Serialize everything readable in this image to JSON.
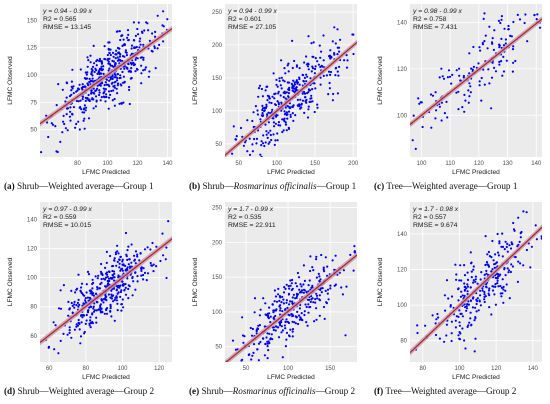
{
  "colors": {
    "panel_background": "#ebebeb",
    "grid": "#ffffff",
    "points": "#0000ee",
    "fit_line": "#b22222",
    "confidence_band": "#c4a0b4",
    "text": "#1a1a1a"
  },
  "chart_data": [
    {
      "id": "a",
      "type": "scatter",
      "point_count_approx": 500,
      "xlabel": "LFMC Predicted",
      "ylabel": "LFMC Observed",
      "xlim": [
        55,
        143
      ],
      "ylim": [
        25,
        165
      ],
      "xticks": [
        80,
        100,
        120,
        140
      ],
      "yticks": [
        50,
        75,
        100,
        125,
        150
      ],
      "equation": "y = 0.94 - 0.99 x",
      "r2": "R2 = 0.565",
      "rmse": "RMSE = 13.145",
      "fit": {
        "slope": 0.99,
        "intercept": 0.94
      },
      "noise_sd": 13.1,
      "x_center": 100,
      "x_sd": 17,
      "caption": {
        "letter": "(a)",
        "parts": [
          {
            "text": "Shrub—Weighted average—Group 1",
            "italic": false
          }
        ]
      }
    },
    {
      "id": "b",
      "type": "scatter",
      "point_count_approx": 400,
      "xlabel": "LFMC Predicted",
      "ylabel": "LFMC Observed",
      "xlim": [
        32,
        205
      ],
      "ylim": [
        30,
        262
      ],
      "xticks": [
        50,
        100,
        150,
        200
      ],
      "yticks": [
        50,
        100,
        150,
        200,
        250
      ],
      "equation": "y = 0.94 - 0.99 x",
      "r2": "R2 = 0.601",
      "rmse": "RMSE = 27.105",
      "fit": {
        "slope": 0.99,
        "intercept": 0.94
      },
      "noise_sd": 27,
      "x_center": 120,
      "x_sd": 33,
      "caption": {
        "letter": "(b)",
        "parts": [
          {
            "text": "Shrub—",
            "italic": false
          },
          {
            "text": "Rosmarinus officinalis",
            "italic": true
          },
          {
            "text": "—Group 1",
            "italic": false
          }
        ]
      }
    },
    {
      "id": "c",
      "type": "scatter",
      "point_count_approx": 170,
      "xlabel": "LFMC Predicted",
      "ylabel": "LFMC Observed",
      "xlim": [
        96,
        142
      ],
      "ylim": [
        82,
        148
      ],
      "xticks": [
        100,
        110,
        120,
        130,
        140
      ],
      "yticks": [
        100,
        120,
        140
      ],
      "equation": "y = 0.98 - 0.99 x",
      "r2": "R2 = 0.758",
      "rmse": "RMSE = 7.431",
      "fit": {
        "slope": 0.99,
        "intercept": 0.98
      },
      "noise_sd": 7.4,
      "x_center": 119,
      "x_sd": 12,
      "caption": {
        "letter": "(c)",
        "parts": [
          {
            "text": "Tree—Weighted average—Group 1",
            "italic": false
          }
        ]
      }
    },
    {
      "id": "d",
      "type": "scatter",
      "point_count_approx": 450,
      "xlabel": "LFMC Predicted",
      "ylabel": "LFMC Observed",
      "xlim": [
        55,
        127
      ],
      "ylim": [
        42,
        152
      ],
      "xticks": [
        60,
        80,
        100,
        120
      ],
      "yticks": [
        60,
        80,
        100,
        120,
        140
      ],
      "equation": "y = 0.97 - 0.99 x",
      "r2": "R2 = 0.559",
      "rmse": "RMSE = 10.015",
      "fit": {
        "slope": 0.99,
        "intercept": 0.97
      },
      "noise_sd": 10,
      "x_center": 92,
      "x_sd": 13,
      "caption": {
        "letter": "(d)",
        "parts": [
          {
            "text": "Shrub—Weighted average—Group 2",
            "italic": false
          }
        ]
      }
    },
    {
      "id": "e",
      "type": "scatter",
      "point_count_approx": 350,
      "xlabel": "LFMC Predicted",
      "ylabel": "LFMC Observed",
      "xlim": [
        25,
        182
      ],
      "ylim": [
        28,
        258
      ],
      "xticks": [
        50,
        100,
        150
      ],
      "yticks": [
        50,
        100,
        150,
        200,
        250
      ],
      "equation": "y = 1.7 - 0.99 x",
      "r2": "R2 = 0.535",
      "rmse": "RMSE = 22.911",
      "fit": {
        "slope": 0.99,
        "intercept": 1.7
      },
      "noise_sd": 22.9,
      "x_center": 105,
      "x_sd": 33,
      "caption": {
        "letter": "(e)",
        "parts": [
          {
            "text": "Shrub—",
            "italic": false
          },
          {
            "text": "Rosmarinus officinalis",
            "italic": true
          },
          {
            "text": "—Group 2",
            "italic": false
          }
        ]
      }
    },
    {
      "id": "f",
      "type": "scatter",
      "point_count_approx": 300,
      "xlabel": "LFMC Predicted",
      "ylabel": "LFMC Observed",
      "xlim": [
        73,
        145
      ],
      "ylim": [
        68,
        158
      ],
      "xticks": [
        80,
        100,
        120,
        140
      ],
      "yticks": [
        80,
        100,
        120,
        140
      ],
      "equation": "y = 1.7 - 0.98 x",
      "r2": "R2 = 0.557",
      "rmse": "RMSE = 9.674",
      "fit": {
        "slope": 0.98,
        "intercept": 1.7
      },
      "noise_sd": 9.7,
      "x_center": 111,
      "x_sd": 14,
      "caption": {
        "letter": "(f)",
        "parts": [
          {
            "text": "Tree—Weighted average—Group 2",
            "italic": false
          }
        ]
      }
    }
  ]
}
